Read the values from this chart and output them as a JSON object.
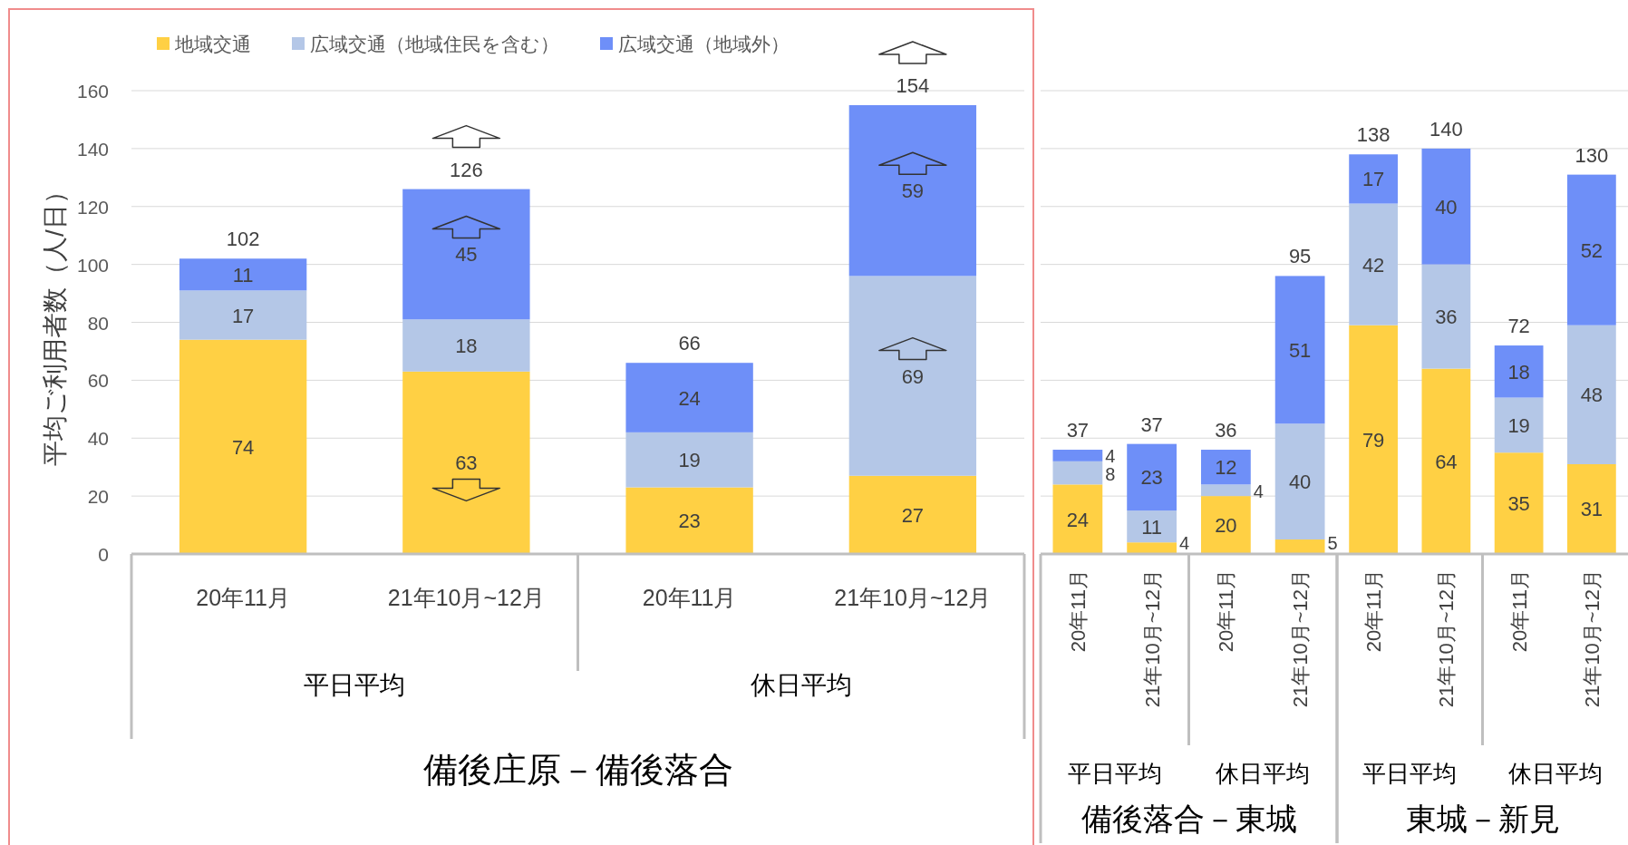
{
  "chart_data": [
    {
      "type": "bar",
      "stacked": true,
      "categories": [
        "20年11月",
        "21年10月~12月",
        "20年11月",
        "21年10月~12月"
      ],
      "series": [
        {
          "name": "地域交通",
          "color": "#ffd044",
          "values": [
            74,
            63,
            23,
            27
          ]
        },
        {
          "name": "広域交通（地域住民を含む）",
          "color": "#b4c7e7",
          "values": [
            17,
            18,
            19,
            69
          ]
        },
        {
          "name": "広域交通（地域外）",
          "color": "#6e8ff8",
          "values": [
            11,
            45,
            24,
            59
          ]
        }
      ],
      "ylim": [
        0,
        160
      ],
      "yticks": [
        0,
        20,
        40,
        60,
        80,
        100,
        120,
        140,
        160
      ],
      "ylabel": "平均ご利用者数（人/日）",
      "xlabel": "備後庄原－備後落合",
      "annotations": [
        "平日平均",
        "休日平均"
      ],
      "data_labels": true,
      "totals": [
        "102",
        "126",
        "66",
        "154"
      ],
      "grid": "y",
      "legend": "top"
    },
    {
      "type": "bar",
      "stacked": true,
      "categories": [
        "20年11月",
        "21年10月~12月",
        "20年11月",
        "21年10月~12月"
      ],
      "series": [
        {
          "color": "#ffd044",
          "values": [
            24,
            4,
            20,
            5
          ]
        },
        {
          "color": "#b4c7e7",
          "values": [
            8,
            11,
            4,
            40
          ]
        },
        {
          "color": "#6e8ff8",
          "values": [
            4,
            23,
            12,
            51
          ]
        }
      ],
      "ylim": [
        0,
        160
      ],
      "yticks": [
        0,
        20,
        40,
        60,
        80,
        100,
        120,
        140,
        160
      ],
      "tick_labels": "x",
      "xlabel": "備後落合－東城",
      "annotations": [
        "平日平均",
        "休日平均"
      ],
      "data_labels": true,
      "totals": [
        "37",
        "37",
        "36",
        "95"
      ],
      "grid": "y"
    },
    {
      "type": "bar",
      "stacked": true,
      "categories": [
        "20年11月",
        "21年10月~12月",
        "20年11月",
        "21年10月~12月"
      ],
      "series": [
        {
          "color": "#ffd044",
          "values": [
            79,
            64,
            35,
            31
          ]
        },
        {
          "color": "#b4c7e7",
          "values": [
            42,
            36,
            19,
            48
          ]
        },
        {
          "color": "#6e8ff8",
          "values": [
            17,
            40,
            18,
            52
          ]
        }
      ],
      "ylim": [
        0,
        160
      ],
      "yticks": [
        0,
        20,
        40,
        60,
        80,
        100,
        120,
        140,
        160
      ],
      "tick_labels": "x",
      "xlabel": "東城－新見",
      "annotations": [
        "平日平均",
        "休日平均"
      ],
      "data_labels": true,
      "totals": [
        "138",
        "140",
        "72",
        "130"
      ],
      "grid": "y"
    }
  ]
}
